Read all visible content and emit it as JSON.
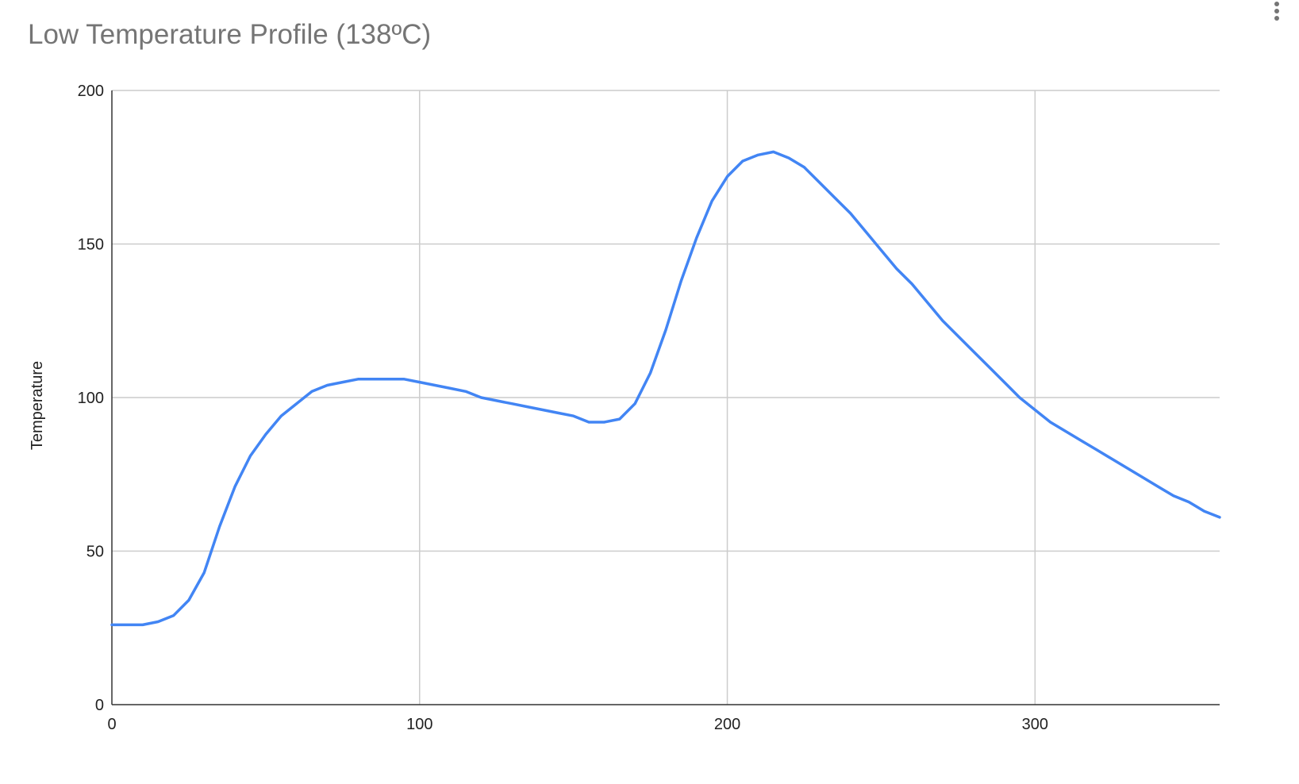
{
  "chart_data": {
    "type": "line",
    "title": "Low Temperature Profile (138ºC)",
    "xlabel": "",
    "ylabel": "Temperature",
    "xlim": [
      0,
      360
    ],
    "ylim": [
      0,
      200
    ],
    "xticks": [
      0,
      100,
      200,
      300
    ],
    "yticks": [
      0,
      50,
      100,
      150,
      200
    ],
    "grid": true,
    "legend": "none",
    "line_color": "#4285f4",
    "gridline_color": "#cccccc",
    "series": [
      {
        "x": [
          0,
          5,
          10,
          15,
          20,
          25,
          30,
          35,
          40,
          45,
          50,
          55,
          60,
          65,
          70,
          75,
          80,
          85,
          90,
          95,
          100,
          105,
          110,
          115,
          120,
          125,
          130,
          135,
          140,
          145,
          150,
          155,
          160,
          165,
          170,
          175,
          180,
          185,
          190,
          195,
          200,
          205,
          210,
          215,
          220,
          225,
          230,
          235,
          240,
          245,
          250,
          255,
          260,
          265,
          270,
          275,
          280,
          285,
          290,
          295,
          300,
          305,
          310,
          315,
          320,
          325,
          330,
          335,
          340,
          345,
          350,
          355,
          360
        ],
        "values": [
          26,
          26,
          26,
          27,
          29,
          34,
          43,
          58,
          71,
          81,
          88,
          94,
          98,
          102,
          104,
          105,
          106,
          106,
          106,
          106,
          105,
          104,
          103,
          102,
          100,
          99,
          98,
          97,
          96,
          95,
          94,
          92,
          92,
          93,
          98,
          108,
          122,
          138,
          152,
          164,
          172,
          177,
          179,
          180,
          178,
          175,
          170,
          165,
          160,
          154,
          148,
          142,
          137,
          131,
          125,
          120,
          115,
          110,
          105,
          100,
          96,
          92,
          89,
          86,
          83,
          80,
          77,
          74,
          71,
          68,
          66,
          63,
          61
        ]
      }
    ]
  }
}
